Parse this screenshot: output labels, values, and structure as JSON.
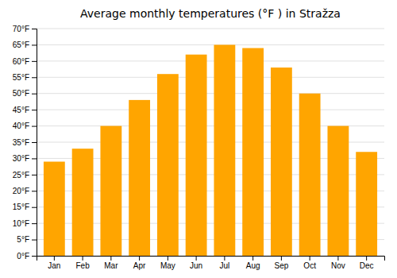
{
  "chart_data": {
    "type": "bar",
    "title": "Average monthly temperatures (°F ) in Stražza",
    "categories": [
      "Jan",
      "Feb",
      "Mar",
      "Apr",
      "May",
      "Jun",
      "Jul",
      "Aug",
      "Sep",
      "Oct",
      "Nov",
      "Dec"
    ],
    "values": [
      29,
      33,
      40,
      48,
      56,
      62,
      65,
      64,
      58,
      50,
      40,
      32
    ],
    "color": "#FFA500",
    "ylim": [
      0,
      70
    ],
    "yticks": [
      {
        "value": 0,
        "label": "0°F"
      },
      {
        "value": 5,
        "label": "5°F"
      },
      {
        "value": 10,
        "label": "10°F"
      },
      {
        "value": 15,
        "label": "15°F"
      },
      {
        "value": 20,
        "label": "20°F"
      },
      {
        "value": 25,
        "label": "25°F"
      },
      {
        "value": 30,
        "label": "30°F"
      },
      {
        "value": 35,
        "label": "35°F"
      },
      {
        "value": 40,
        "label": "40°F"
      },
      {
        "value": 45,
        "label": "45°F"
      },
      {
        "value": 50,
        "label": "50°F"
      },
      {
        "value": 55,
        "label": "55°F"
      },
      {
        "value": 60,
        "label": "60°F"
      },
      {
        "value": 65,
        "label": "65°F"
      },
      {
        "value": 70,
        "label": "70°F"
      }
    ],
    "grid": true
  }
}
